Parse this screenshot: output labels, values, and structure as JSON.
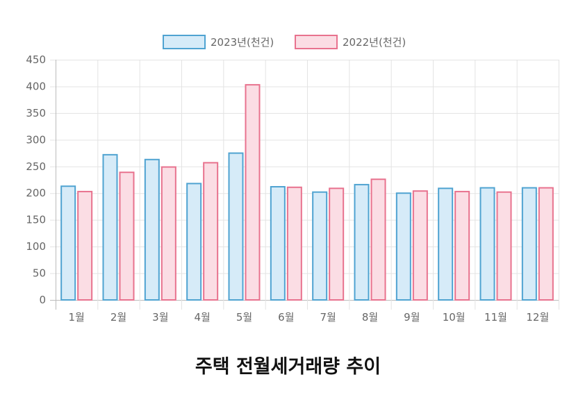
{
  "chart_data": {
    "type": "bar",
    "title": "주택 전월세거래량 추이",
    "categories": [
      "1월",
      "2월",
      "3월",
      "4월",
      "5월",
      "6월",
      "7월",
      "8월",
      "9월",
      "10월",
      "11월",
      "12월"
    ],
    "series": [
      {
        "name": "2023년(천건)",
        "values": [
          213,
          272,
          263,
          218,
          275,
          212,
          202,
          216,
          200,
          209,
          210,
          210
        ],
        "border": "#4fa3d1",
        "fill": "#d6ebf8"
      },
      {
        "name": "2022년(천건)",
        "values": [
          203,
          239,
          249,
          257,
          403,
          211,
          209,
          226,
          204,
          203,
          202,
          210
        ],
        "border": "#e8728e",
        "fill": "#fbdde4"
      }
    ],
    "ylim": [
      0,
      450
    ],
    "yticks": [
      0,
      50,
      100,
      150,
      200,
      250,
      300,
      350,
      400,
      450
    ],
    "grid": true,
    "legend": "top-center"
  }
}
